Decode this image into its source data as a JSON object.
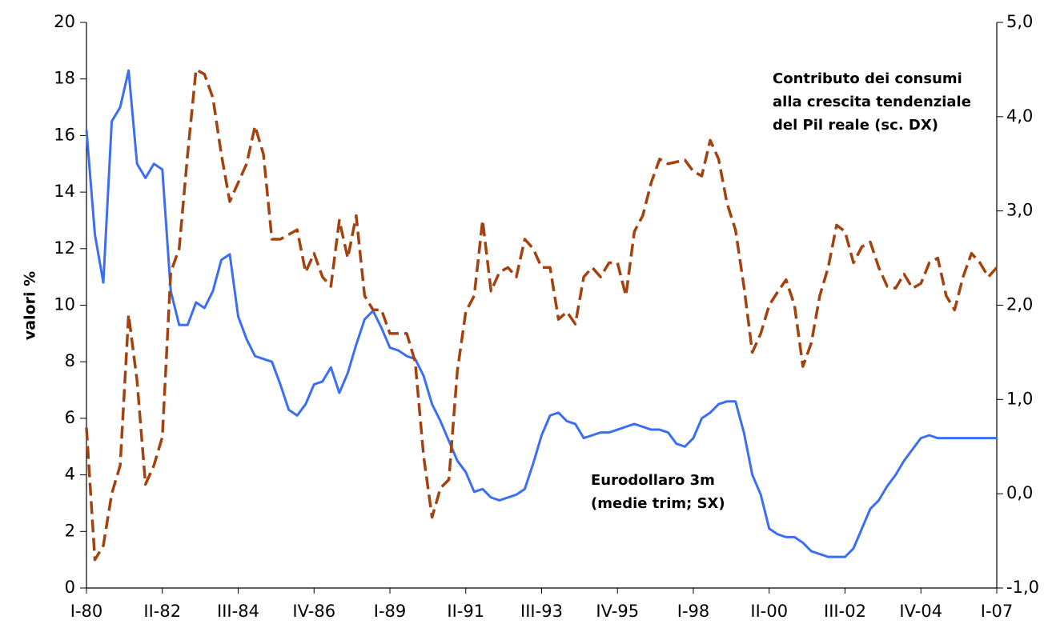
{
  "chart_data": {
    "type": "line",
    "ylabel": "valori %",
    "categories": [
      "I-80",
      null,
      null,
      null,
      null,
      null,
      null,
      null,
      null,
      "II-82",
      null,
      null,
      null,
      null,
      null,
      null,
      null,
      null,
      "III-84",
      null,
      null,
      null,
      null,
      null,
      null,
      null,
      null,
      "IV-86",
      null,
      null,
      null,
      null,
      null,
      null,
      null,
      null,
      "I-89",
      null,
      null,
      null,
      null,
      null,
      null,
      null,
      null,
      "II-91",
      null,
      null,
      null,
      null,
      null,
      null,
      null,
      null,
      "III-93",
      null,
      null,
      null,
      null,
      null,
      null,
      null,
      null,
      "IV-95",
      null,
      null,
      null,
      null,
      null,
      null,
      null,
      null,
      "I-98",
      null,
      null,
      null,
      null,
      null,
      null,
      null,
      null,
      "II-00",
      null,
      null,
      null,
      null,
      null,
      null,
      null,
      null,
      "III-02",
      null,
      null,
      null,
      null,
      null,
      null,
      null,
      null,
      "IV-04",
      null,
      null,
      null,
      null,
      null,
      null,
      null,
      null,
      "I-07"
    ],
    "series": [
      {
        "name": "Eurodollaro 3m (medie trim; SX)",
        "color": "#3b6ef2",
        "line_style": "solid",
        "axis": "y",
        "values": [
          16.2,
          12.5,
          10.8,
          16.5,
          17.0,
          18.3,
          15.0,
          14.5,
          15.0,
          14.8,
          10.5,
          9.3,
          9.3,
          10.1,
          9.9,
          10.5,
          11.6,
          11.8,
          9.6,
          8.8,
          8.2,
          8.1,
          8.0,
          7.2,
          6.3,
          6.1,
          6.5,
          7.2,
          7.3,
          7.8,
          6.9,
          7.6,
          8.6,
          9.5,
          9.8,
          9.2,
          8.5,
          8.4,
          8.2,
          8.1,
          7.5,
          6.5,
          5.9,
          5.2,
          4.5,
          4.1,
          3.4,
          3.5,
          3.2,
          3.1,
          3.2,
          3.3,
          3.5,
          4.4,
          5.4,
          6.1,
          6.2,
          5.9,
          5.8,
          5.3,
          5.4,
          5.5,
          5.5,
          5.6,
          5.7,
          5.8,
          5.7,
          5.6,
          5.6,
          5.5,
          5.1,
          5.0,
          5.3,
          6.0,
          6.2,
          6.5,
          6.6,
          6.6,
          5.5,
          4.0,
          3.3,
          2.1,
          1.9,
          1.8,
          1.8,
          1.6,
          1.3,
          1.2,
          1.1,
          1.1,
          1.1,
          1.4,
          2.1,
          2.8,
          3.1,
          3.6,
          4.0,
          4.5,
          4.9,
          5.3,
          5.4,
          5.3,
          5.3,
          5.3,
          5.3,
          5.3,
          5.3,
          5.3,
          5.3
        ]
      },
      {
        "name": "Contributo dei consumi  alla crescita tendenziale del Pil reale (sc. DX)",
        "color": "#a3420f",
        "line_style": "dashed",
        "axis": "y2",
        "values": [
          0.7,
          -0.7,
          -0.55,
          0.0,
          0.3,
          1.9,
          1.2,
          0.1,
          0.3,
          0.6,
          2.35,
          2.6,
          3.6,
          4.5,
          4.45,
          4.2,
          3.6,
          3.1,
          3.3,
          3.5,
          3.9,
          3.6,
          2.7,
          2.7,
          2.75,
          2.8,
          2.35,
          2.55,
          2.3,
          2.2,
          2.9,
          2.5,
          2.95,
          2.1,
          1.95,
          1.95,
          1.7,
          1.7,
          1.7,
          1.4,
          0.4,
          -0.25,
          0.06,
          0.15,
          1.3,
          1.93,
          2.1,
          2.9,
          2.15,
          2.35,
          2.4,
          2.3,
          2.7,
          2.6,
          2.4,
          2.4,
          1.85,
          1.93,
          1.8,
          2.3,
          2.4,
          2.3,
          2.45,
          2.45,
          2.1,
          2.78,
          2.95,
          3.3,
          3.55,
          3.5,
          3.52,
          3.54,
          3.42,
          3.37,
          3.75,
          3.55,
          3.08,
          2.8,
          2.2,
          1.5,
          1.7,
          2.0,
          2.14,
          2.27,
          2.0,
          1.35,
          1.6,
          2.1,
          2.4,
          2.85,
          2.78,
          2.45,
          2.62,
          2.67,
          2.4,
          2.2,
          2.18,
          2.33,
          2.18,
          2.23,
          2.45,
          2.5,
          2.1,
          1.95,
          2.3,
          2.55,
          2.45,
          2.3,
          2.4
        ]
      }
    ],
    "ylim": [
      0,
      20
    ],
    "yticks": [
      0,
      2,
      4,
      6,
      8,
      10,
      12,
      14,
      16,
      18,
      20
    ],
    "y2lim": [
      -1,
      5
    ],
    "y2ticks": [
      {
        "value": -1,
        "label": "-1,0"
      },
      {
        "value": 0,
        "label": "0,0"
      },
      {
        "value": 1,
        "label": "1,0"
      },
      {
        "value": 2,
        "label": "2,0"
      },
      {
        "value": 3,
        "label": "3,0"
      },
      {
        "value": 4,
        "label": "4,0"
      },
      {
        "value": 5,
        "label": "5,0"
      }
    ],
    "grid": false
  }
}
